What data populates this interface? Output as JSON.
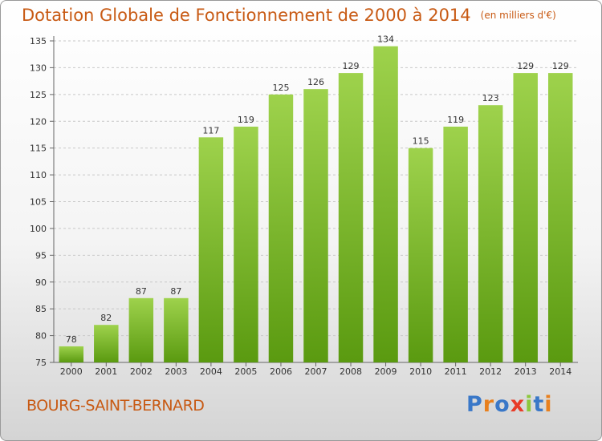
{
  "title": "Dotation Globale de Fonctionnement de 2000 à 2014",
  "unit_note": "(en milliers d'€)",
  "commune": "BOURG-SAINT-BERNARD",
  "logo": {
    "text": "Proxiti",
    "colors": [
      "#3a78c8",
      "#e8801e",
      "#3a78c8",
      "#e83c28",
      "#8cc83c",
      "#3a78c8",
      "#e8801e"
    ]
  },
  "colors": {
    "title": "#c85a14",
    "bar_light": "#9ed24c",
    "bar_dark": "#5a9a10"
  },
  "chart_data": {
    "type": "bar",
    "categories": [
      "2000",
      "2001",
      "2002",
      "2003",
      "2004",
      "2005",
      "2006",
      "2007",
      "2008",
      "2009",
      "2010",
      "2011",
      "2012",
      "2013",
      "2014"
    ],
    "values": [
      78,
      82,
      87,
      87,
      117,
      119,
      125,
      126,
      129,
      134,
      115,
      119,
      123,
      129,
      129
    ],
    "title": "Dotation Globale de Fonctionnement de 2000 à 2014",
    "ylabel": "",
    "xlabel": "",
    "ylim": [
      75,
      135
    ],
    "yticks": [
      75,
      80,
      85,
      90,
      95,
      100,
      105,
      110,
      115,
      120,
      125,
      130,
      135
    ],
    "grid": true
  }
}
